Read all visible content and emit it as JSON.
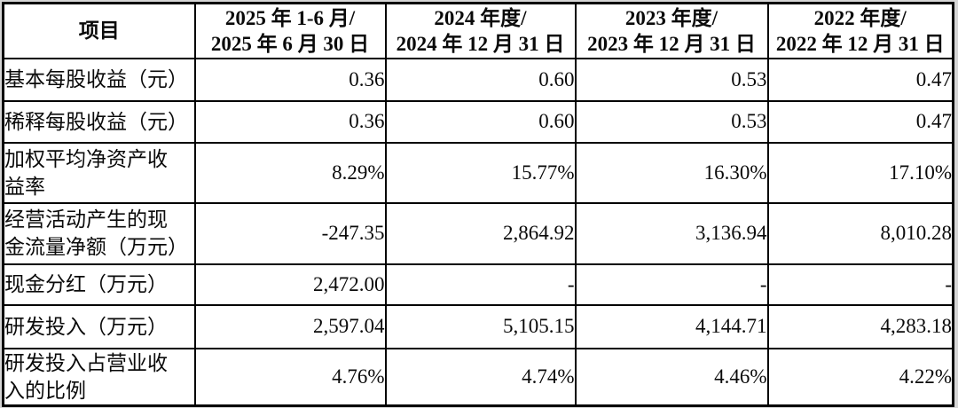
{
  "colors": {
    "page_background": "#d6d6d6",
    "table_background": "#ffffff",
    "border": "#000000",
    "text": "#0a0a0a"
  },
  "table": {
    "header": {
      "item_label": "项目",
      "periods": [
        "2025 年 1-6 月/\n2025 年 6 月 30 日",
        "2024 年度/\n2024 年 12 月 31 日",
        "2023 年度/\n2023 年 12 月 31 日",
        "2022 年度/\n2022 年 12 月 31 日"
      ]
    },
    "rows": [
      {
        "label": "基本每股收益（元）",
        "values": [
          "0.36",
          "0.60",
          "0.53",
          "0.47"
        ]
      },
      {
        "label": "稀释每股收益（元）",
        "values": [
          "0.36",
          "0.60",
          "0.53",
          "0.47"
        ]
      },
      {
        "label": "加权平均净资产收\n益率",
        "values": [
          "8.29%",
          "15.77%",
          "16.30%",
          "17.10%"
        ]
      },
      {
        "label": "经营活动产生的现\n金流量净额（万元）",
        "values": [
          "-247.35",
          "2,864.92",
          "3,136.94",
          "8,010.28"
        ]
      },
      {
        "label": "现金分红（万元）",
        "values": [
          "2,472.00",
          "-",
          "-",
          "-"
        ]
      },
      {
        "label": "研发投入（万元）",
        "values": [
          "2,597.04",
          "5,105.15",
          "4,144.71",
          "4,283.18"
        ]
      },
      {
        "label": "研发投入占营业收\n入的比例",
        "values": [
          "4.76%",
          "4.74%",
          "4.46%",
          "4.22%"
        ]
      }
    ]
  }
}
